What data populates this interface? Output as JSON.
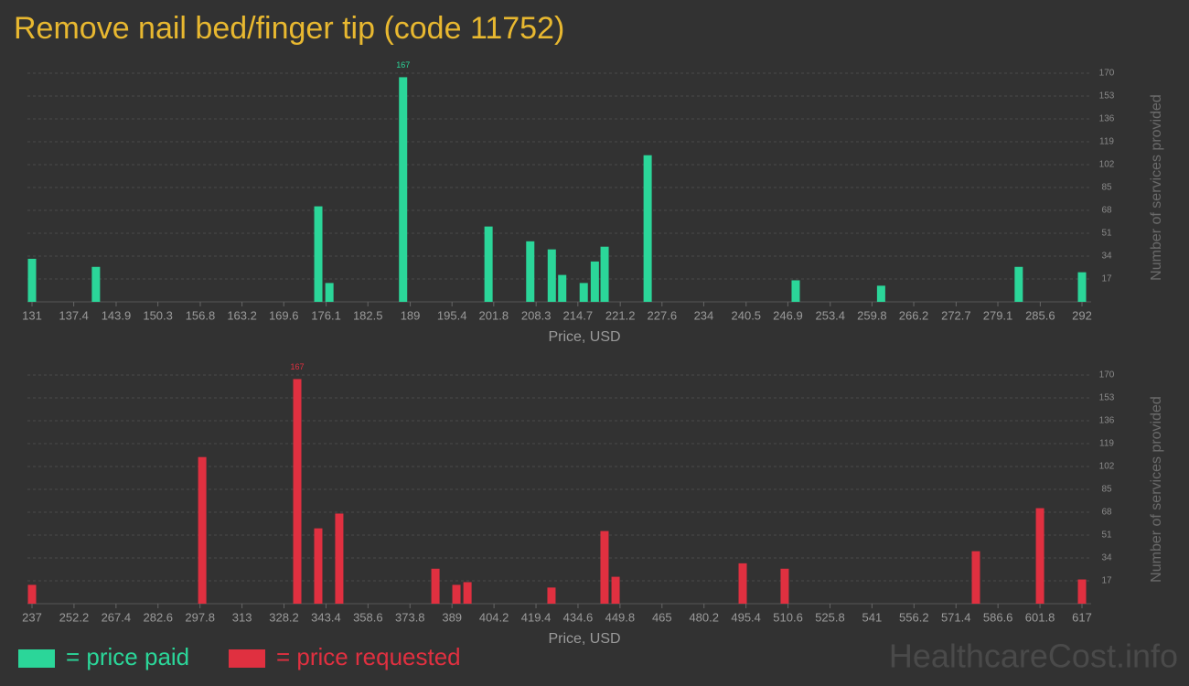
{
  "title": "Remove nail bed/finger tip (code 11752)",
  "watermark": "HealthcareCost.info",
  "chart_data": [
    {
      "type": "bar",
      "xlabel": "Price, USD",
      "ylabel": "Number of services provided",
      "x": [
        131,
        140.8,
        174.9,
        176.6,
        187.9,
        201.0,
        207.4,
        210.7,
        212.3,
        215.6,
        217.3,
        218.8,
        225.4,
        248.1,
        261.2,
        282.3,
        292
      ],
      "series": [
        {
          "name": "= price paid",
          "color": "#2bd699",
          "values": [
            32,
            26,
            71,
            14,
            167,
            56,
            45,
            39,
            20,
            14,
            30,
            41,
            109,
            16,
            12,
            26,
            22
          ]
        }
      ],
      "xlim": [
        131,
        292
      ],
      "xticks": [
        131,
        137.4,
        143.9,
        150.3,
        156.8,
        163.2,
        169.6,
        176.1,
        182.5,
        189,
        195.4,
        201.8,
        208.3,
        214.7,
        221.2,
        227.6,
        234,
        240.5,
        246.9,
        253.4,
        259.8,
        266.2,
        272.7,
        279.1,
        285.6,
        292
      ],
      "ylim": [
        0,
        170
      ],
      "yticks": [
        17,
        34,
        51,
        68,
        85,
        102,
        119,
        136,
        153,
        170
      ],
      "grid": true
    },
    {
      "type": "bar",
      "xlabel": "Price, USD",
      "ylabel": "Number of services provided",
      "x": [
        237,
        298.6,
        333.0,
        340.6,
        348.2,
        383.0,
        390.6,
        394.6,
        425.0,
        444.2,
        448.2,
        494.2,
        509.4,
        578.6,
        601.8,
        617
      ],
      "series": [
        {
          "name": "= price requested",
          "color": "#e03040",
          "values": [
            14,
            109,
            167,
            56,
            67,
            26,
            14,
            16,
            12,
            54,
            20,
            30,
            26,
            39,
            71,
            18
          ]
        }
      ],
      "xlim": [
        237,
        617
      ],
      "xticks": [
        237,
        252.2,
        267.4,
        282.6,
        297.8,
        313,
        328.2,
        343.4,
        358.6,
        373.8,
        389,
        404.2,
        419.4,
        434.6,
        449.8,
        465,
        480.2,
        495.4,
        510.6,
        525.8,
        541,
        556.2,
        571.4,
        586.6,
        601.8,
        617
      ],
      "ylim": [
        0,
        170
      ],
      "yticks": [
        17,
        34,
        51,
        68,
        85,
        102,
        119,
        136,
        153,
        170
      ],
      "grid": true
    }
  ]
}
